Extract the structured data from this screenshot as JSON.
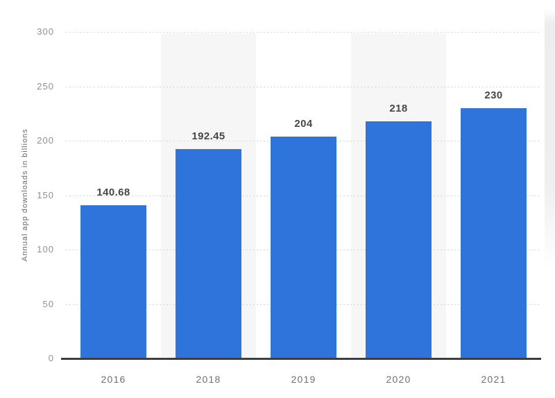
{
  "chart_data": {
    "type": "bar",
    "title": "",
    "xlabel": "",
    "ylabel": "Annual app downloads in billions",
    "categories": [
      "2016",
      "2018",
      "2019",
      "2020",
      "2021"
    ],
    "values": [
      140.68,
      192.45,
      204,
      218,
      230
    ],
    "value_labels": [
      "140.68",
      "192.45",
      "204",
      "218",
      "230"
    ],
    "ylim": [
      0,
      300
    ],
    "yticks": [
      0,
      50,
      100,
      150,
      200,
      250,
      300
    ],
    "ytick_labels": [
      "0",
      "50",
      "100",
      "150",
      "200",
      "250",
      "300"
    ],
    "grid": "horizontal dotted gridlines on",
    "legend": "none",
    "plot_bands_behind_categories": [
      "2018",
      "2020"
    ],
    "banded_category_indices": [
      1,
      3
    ]
  },
  "colors": {
    "bar_fill": "#2e74da",
    "plot_band": "#f6f6f7",
    "gridline": "#d4d4d4",
    "axis_line": "#3e3e3e",
    "value_label_text": "#474747",
    "tick_label_text": "#8f8f8f",
    "x_label_text": "#6f6f6f",
    "background": "#ffffff"
  }
}
